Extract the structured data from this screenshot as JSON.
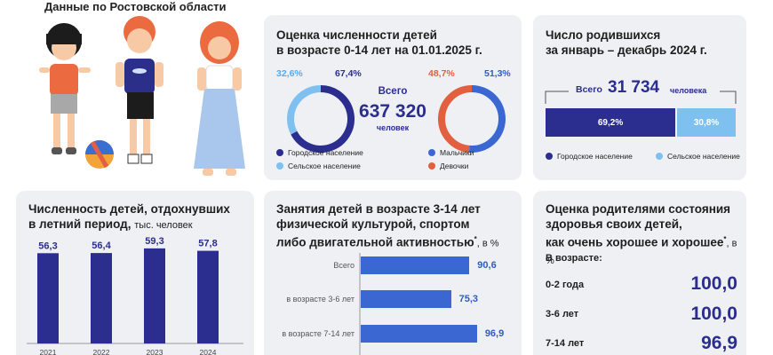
{
  "header": {
    "subtitle": "Данные по Ростовской области"
  },
  "colors": {
    "dark_blue": "#2b2d8f",
    "light_blue": "#7ec0f0",
    "blue": "#3a67d1",
    "orange": "#e2603f",
    "card_bg": "#eef0f3"
  },
  "population": {
    "title_line1": "Оценка численности детей",
    "title_line2": "в возрасте 0-14 лет на 01.01.2025 г.",
    "total_label": "Всего",
    "total_value": "637 320",
    "total_unit": "человек",
    "urban_pct_label": "67,4%",
    "rural_pct_label": "32,6%",
    "boys_pct_label": "51,3%",
    "girls_pct_label": "48,7%",
    "legend_urban": "Городское население",
    "legend_rural": "Сельское население",
    "legend_boys": "Мальчики",
    "legend_girls": "Девочки"
  },
  "births": {
    "title_line1": "Число родившихся",
    "title_line2": "за январь – декабрь 2024 г.",
    "total_label": "Всего",
    "total_value": "31 734",
    "total_unit": "человека",
    "urban_label": "69,2%",
    "rural_label": "30,8%",
    "legend_urban": "Городское население",
    "legend_rural": "Сельское население"
  },
  "rest": {
    "title_line1": "Численность детей, отдохнувших",
    "title_line2": "в летний период,",
    "unit": "тыс. человек"
  },
  "sport": {
    "title_line1": "Занятия детей в возрасте 3-14 лет",
    "title_line2": "физической культурой, спортом",
    "title_line3": "либо двигательной активностью",
    "title_mark": "*",
    "unit": ", в %"
  },
  "health": {
    "title_line1": "Оценка родителями состояния",
    "title_line2": "здоровья своих детей,",
    "title_line3": "как очень хорошее и хорошее",
    "title_mark": "*",
    "unit": ", в %",
    "age_header": "В возрасте:",
    "rows": [
      {
        "label": "0-2 года",
        "value": "100,0"
      },
      {
        "label": "3-6 лет",
        "value": "100,0"
      },
      {
        "label": "7-14 лет",
        "value": "96,9"
      }
    ]
  },
  "chart_data": [
    {
      "type": "pie",
      "name": "population_by_settlement",
      "categories": [
        "Городское население",
        "Сельское население"
      ],
      "values": [
        67.4,
        32.6
      ]
    },
    {
      "type": "pie",
      "name": "population_by_sex",
      "categories": [
        "Мальчики",
        "Девочки"
      ],
      "values": [
        51.3,
        48.7
      ]
    },
    {
      "type": "bar",
      "name": "births_by_settlement",
      "categories": [
        "Городское население",
        "Сельское население"
      ],
      "values": [
        69.2,
        30.8
      ]
    },
    {
      "type": "bar",
      "name": "summer_rest",
      "categories": [
        "2021",
        "2022",
        "2023",
        "2024"
      ],
      "values": [
        56.3,
        56.4,
        59.3,
        57.8
      ],
      "value_labels": [
        "56,3",
        "56,4",
        "59,3",
        "57,8"
      ],
      "ylim": [
        0,
        62
      ]
    },
    {
      "type": "bar",
      "name": "sport_activity",
      "categories": [
        "Всего",
        "в возрасте 3-6 лет",
        "в возрасте 7-14 лет"
      ],
      "values": [
        90.6,
        75.3,
        96.9
      ],
      "value_labels": [
        "90,6",
        "75,3",
        "96,9"
      ],
      "xlim": [
        0,
        100
      ]
    }
  ]
}
